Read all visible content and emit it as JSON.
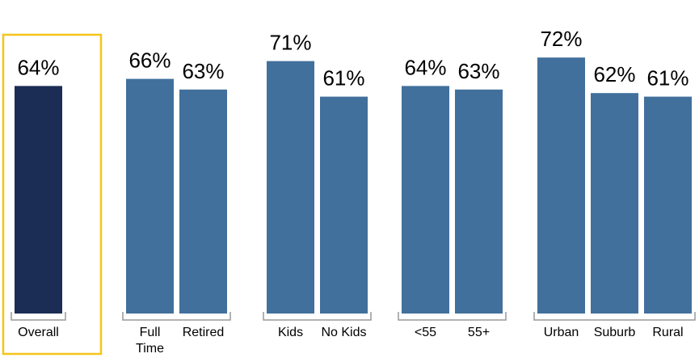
{
  "chart_data": {
    "type": "bar",
    "ylim": [
      0,
      100
    ],
    "grid": false,
    "legend": "none",
    "groups": [
      {
        "categories": [
          [
            "Overall"
          ]
        ],
        "values": [
          64
        ],
        "highlight": true
      },
      {
        "categories": [
          [
            "Full",
            "Time"
          ],
          [
            "Retired"
          ]
        ],
        "values": [
          66,
          63
        ]
      },
      {
        "categories": [
          [
            "Kids"
          ],
          [
            "No Kids"
          ]
        ],
        "values": [
          71,
          61
        ]
      },
      {
        "categories": [
          [
            "<55"
          ],
          [
            "55+"
          ]
        ],
        "values": [
          64,
          63
        ]
      },
      {
        "categories": [
          [
            "Urban"
          ],
          [
            "Suburb"
          ],
          [
            "Rural"
          ]
        ],
        "values": [
          72,
          62,
          61
        ]
      }
    ],
    "value_labels": [
      "64%",
      "66%",
      "63%",
      "71%",
      "61%",
      "64%",
      "63%",
      "72%",
      "62%",
      "61%"
    ],
    "colors": {
      "highlight_bar": "#1b2d54",
      "bar": "#41709c",
      "highlight_border": "#f5c518",
      "bracket": "#999999"
    }
  }
}
